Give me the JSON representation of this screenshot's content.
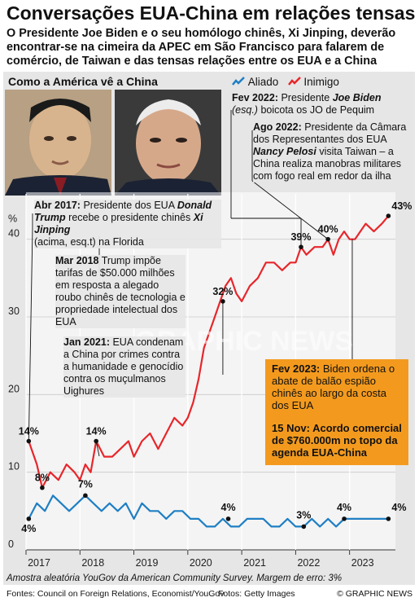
{
  "header": {
    "title": "Conversações EUA-China em relações tensas",
    "subtitle_lines": [
      "O Presidente Joe Biden e o seu homólogo chinês, Xi Jinping, deverão",
      "encontrar-se na cimeira da APEC em São Francisco para falarem de",
      "comércio, de Taiwan e das tensas relações entre os EUA e a China"
    ]
  },
  "panel": {
    "title": "Como a América vê a China"
  },
  "legend": {
    "ally": "Aliado",
    "enemy": "Inimigo"
  },
  "colors": {
    "ally": "#1f7fc4",
    "enemy": "#e8262b",
    "highlight": "#f39a1e",
    "panel": "#e6e6e6"
  },
  "watermark": "GRAPHIC NEWS",
  "annotations": {
    "a2017": {
      "date": "Abr 2017:",
      "pre": "Presidente dos EUA",
      "name1": "Donald Trump",
      "mid": "recebe o presidente chinês",
      "name2": "Xi Jinping",
      "post": "(acima, esq.t) na Florida"
    },
    "a2018": {
      "date": "Mar 2018",
      "text": "Trump impõe tarifas de $50.000 milhões em resposta a alegado roubo chinês de tecnologia e propriedade intelectual dos EUA"
    },
    "a2021": {
      "date": "Jan 2021:",
      "text": "EUA condenam a China por crimes contra a humanidade e genocídio contra os muçulmanos Uighures"
    },
    "f2022": {
      "date": "Fev 2022:",
      "pre": "Presidente",
      "name": "Joe Biden",
      "esq": "(esq.)",
      "post": "boicota os JO de Pequim"
    },
    "a2022": {
      "date": "Ago 2022:",
      "pre": "Presidente da Câmara dos Representantes dos EUA",
      "name": "Nancy Pelosi",
      "post": "visita Taiwan – a China realiza manobras militares com fogo real em redor da ilha"
    },
    "f2023": {
      "date": "Fev 2023:",
      "text": "Biden ordena o abate de balão espião chinês ao largo da costa dos EUA"
    },
    "n2023": {
      "text": "15 Nov: Acordo comercial de $760.000m no topo da agenda EUA-China"
    }
  },
  "footnote": "Amostra aleatória YouGov da American Community Survey. Margem de erro: 3%",
  "footer": {
    "sources": "Fontes: Council on Foreign Relations, Economist/YouGov",
    "photos": "Fotos: Getty Images",
    "credit": "© GRAPHIC NEWS"
  },
  "chart_data": {
    "type": "line",
    "ylabel": "%",
    "ylim": [
      0,
      45
    ],
    "yticks": [
      "0",
      "10",
      "20",
      "30",
      "40"
    ],
    "xlim": [
      2017.0,
      2023.85
    ],
    "xticks": [
      "2017",
      "2018",
      "2019",
      "2020",
      "2021",
      "2022",
      "2023"
    ],
    "series": [
      {
        "name": "Inimigo",
        "x": [
          2017.05,
          2017.2,
          2017.3,
          2017.45,
          2017.6,
          2017.75,
          2017.9,
          2018.0,
          2018.1,
          2018.2,
          2018.3,
          2018.45,
          2018.6,
          2018.75,
          2018.9,
          2019.0,
          2019.15,
          2019.3,
          2019.45,
          2019.6,
          2019.75,
          2019.9,
          2020.0,
          2020.1,
          2020.2,
          2020.3,
          2020.4,
          2020.5,
          2020.6,
          2020.7,
          2020.8,
          2020.9,
          2021.0,
          2021.15,
          2021.3,
          2021.45,
          2021.6,
          2021.75,
          2021.9,
          2022.0,
          2022.1,
          2022.2,
          2022.35,
          2022.5,
          2022.6,
          2022.7,
          2022.8,
          2022.9,
          2023.0,
          2023.1,
          2023.2,
          2023.3,
          2023.45,
          2023.6,
          2023.72
        ],
        "values": [
          14,
          11,
          8,
          10,
          9,
          11,
          10,
          9,
          11,
          10,
          14,
          12,
          12,
          13,
          14,
          12,
          14,
          15,
          13,
          15,
          17,
          16,
          17,
          19,
          22,
          26,
          28,
          30,
          32,
          34,
          35,
          33,
          32,
          34,
          35,
          37,
          37,
          36,
          37,
          37,
          39,
          38,
          39,
          39,
          40,
          38,
          40,
          41,
          40,
          40,
          41,
          42,
          41,
          42,
          43
        ]
      },
      {
        "name": "Aliado",
        "x": [
          2017.05,
          2017.2,
          2017.35,
          2017.5,
          2017.65,
          2017.8,
          2017.95,
          2018.1,
          2018.25,
          2018.4,
          2018.55,
          2018.7,
          2018.85,
          2019.0,
          2019.15,
          2019.3,
          2019.45,
          2019.6,
          2019.75,
          2019.9,
          2020.05,
          2020.2,
          2020.35,
          2020.5,
          2020.65,
          2020.8,
          2020.95,
          2021.1,
          2021.25,
          2021.4,
          2021.55,
          2021.7,
          2021.85,
          2022.0,
          2022.15,
          2022.3,
          2022.45,
          2022.6,
          2022.75,
          2022.9,
          2023.05,
          2023.2,
          2023.35,
          2023.5,
          2023.65,
          2023.72
        ],
        "values": [
          4,
          6,
          5,
          7,
          6,
          5,
          6,
          7,
          6,
          5,
          6,
          5,
          6,
          4,
          6,
          5,
          5,
          4,
          5,
          5,
          4,
          4,
          3,
          3,
          4,
          3,
          3,
          4,
          4,
          4,
          3,
          3,
          4,
          3,
          3,
          4,
          3,
          4,
          3,
          4,
          4,
          4,
          4,
          4,
          4,
          4
        ]
      }
    ],
    "data_labels": [
      {
        "text": "14%",
        "series": "Inimigo",
        "x": 2017.05,
        "y": 14
      },
      {
        "text": "8%",
        "series": "Inimigo",
        "x": 2017.3,
        "y": 8
      },
      {
        "text": "14%",
        "series": "Inimigo",
        "x": 2018.3,
        "y": 14
      },
      {
        "text": "7%",
        "series": "Aliado",
        "x": 2018.1,
        "y": 7
      },
      {
        "text": "4%",
        "series": "Aliado",
        "x": 2017.05,
        "y": 4
      },
      {
        "text": "32%",
        "series": "Inimigo",
        "x": 2020.65,
        "y": 32
      },
      {
        "text": "39%",
        "series": "Inimigo",
        "x": 2022.1,
        "y": 39
      },
      {
        "text": "40%",
        "series": "Inimigo",
        "x": 2022.6,
        "y": 40
      },
      {
        "text": "43%",
        "series": "Inimigo",
        "x": 2023.72,
        "y": 43
      },
      {
        "text": "4%",
        "series": "Aliado",
        "x": 2020.75,
        "y": 4
      },
      {
        "text": "3%",
        "series": "Aliado",
        "x": 2022.15,
        "y": 3
      },
      {
        "text": "4%",
        "series": "Aliado",
        "x": 2022.9,
        "y": 4
      },
      {
        "text": "4%",
        "series": "Aliado",
        "x": 2023.72,
        "y": 4
      }
    ]
  }
}
